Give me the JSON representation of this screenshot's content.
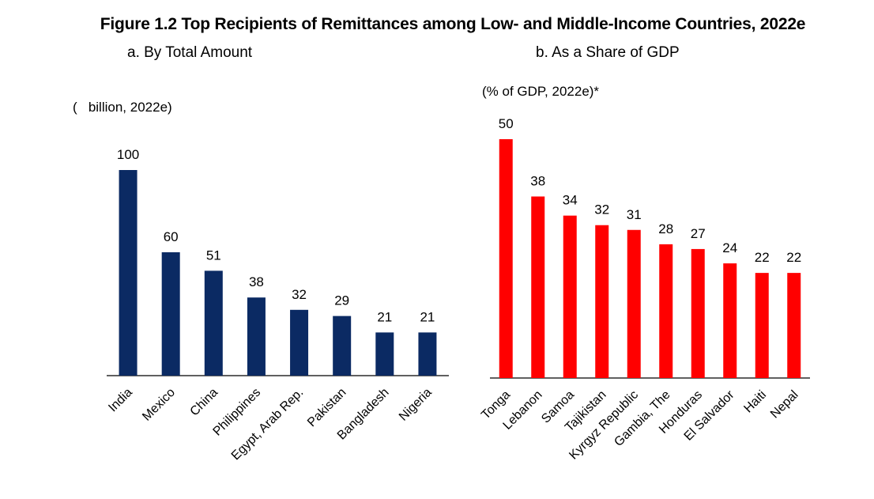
{
  "title": "Figure 1.2 Top Recipients of Remittances among Low- and Middle-Income Countries, 2022e",
  "chart_data": [
    {
      "type": "bar",
      "subtitle": "a. By Total Amount",
      "ylabel": "(   billion, 2022e)",
      "categories": [
        "India",
        "Mexico",
        "China",
        "Philippines",
        "Egypt, Arab Rep.",
        "Pakistan",
        "Bangladesh",
        "Nigeria"
      ],
      "values": [
        100,
        60,
        51,
        38,
        32,
        29,
        21,
        21
      ],
      "ylim": [
        0,
        100
      ],
      "color": "#0b2a63",
      "grid": false
    },
    {
      "type": "bar",
      "subtitle": "b. As a Share of GDP",
      "ylabel": "(% of GDP, 2022e)*",
      "categories": [
        "Tonga",
        "Lebanon",
        "Samoa",
        "Tajikistan",
        "Kyrgyz Republic",
        "Gambia, The",
        "Honduras",
        "El Salvador",
        "Haiti",
        "Nepal"
      ],
      "values": [
        50,
        38,
        34,
        32,
        31,
        28,
        27,
        24,
        22,
        22
      ],
      "ylim": [
        0,
        50
      ],
      "color": "#ff0000",
      "grid": false
    }
  ]
}
